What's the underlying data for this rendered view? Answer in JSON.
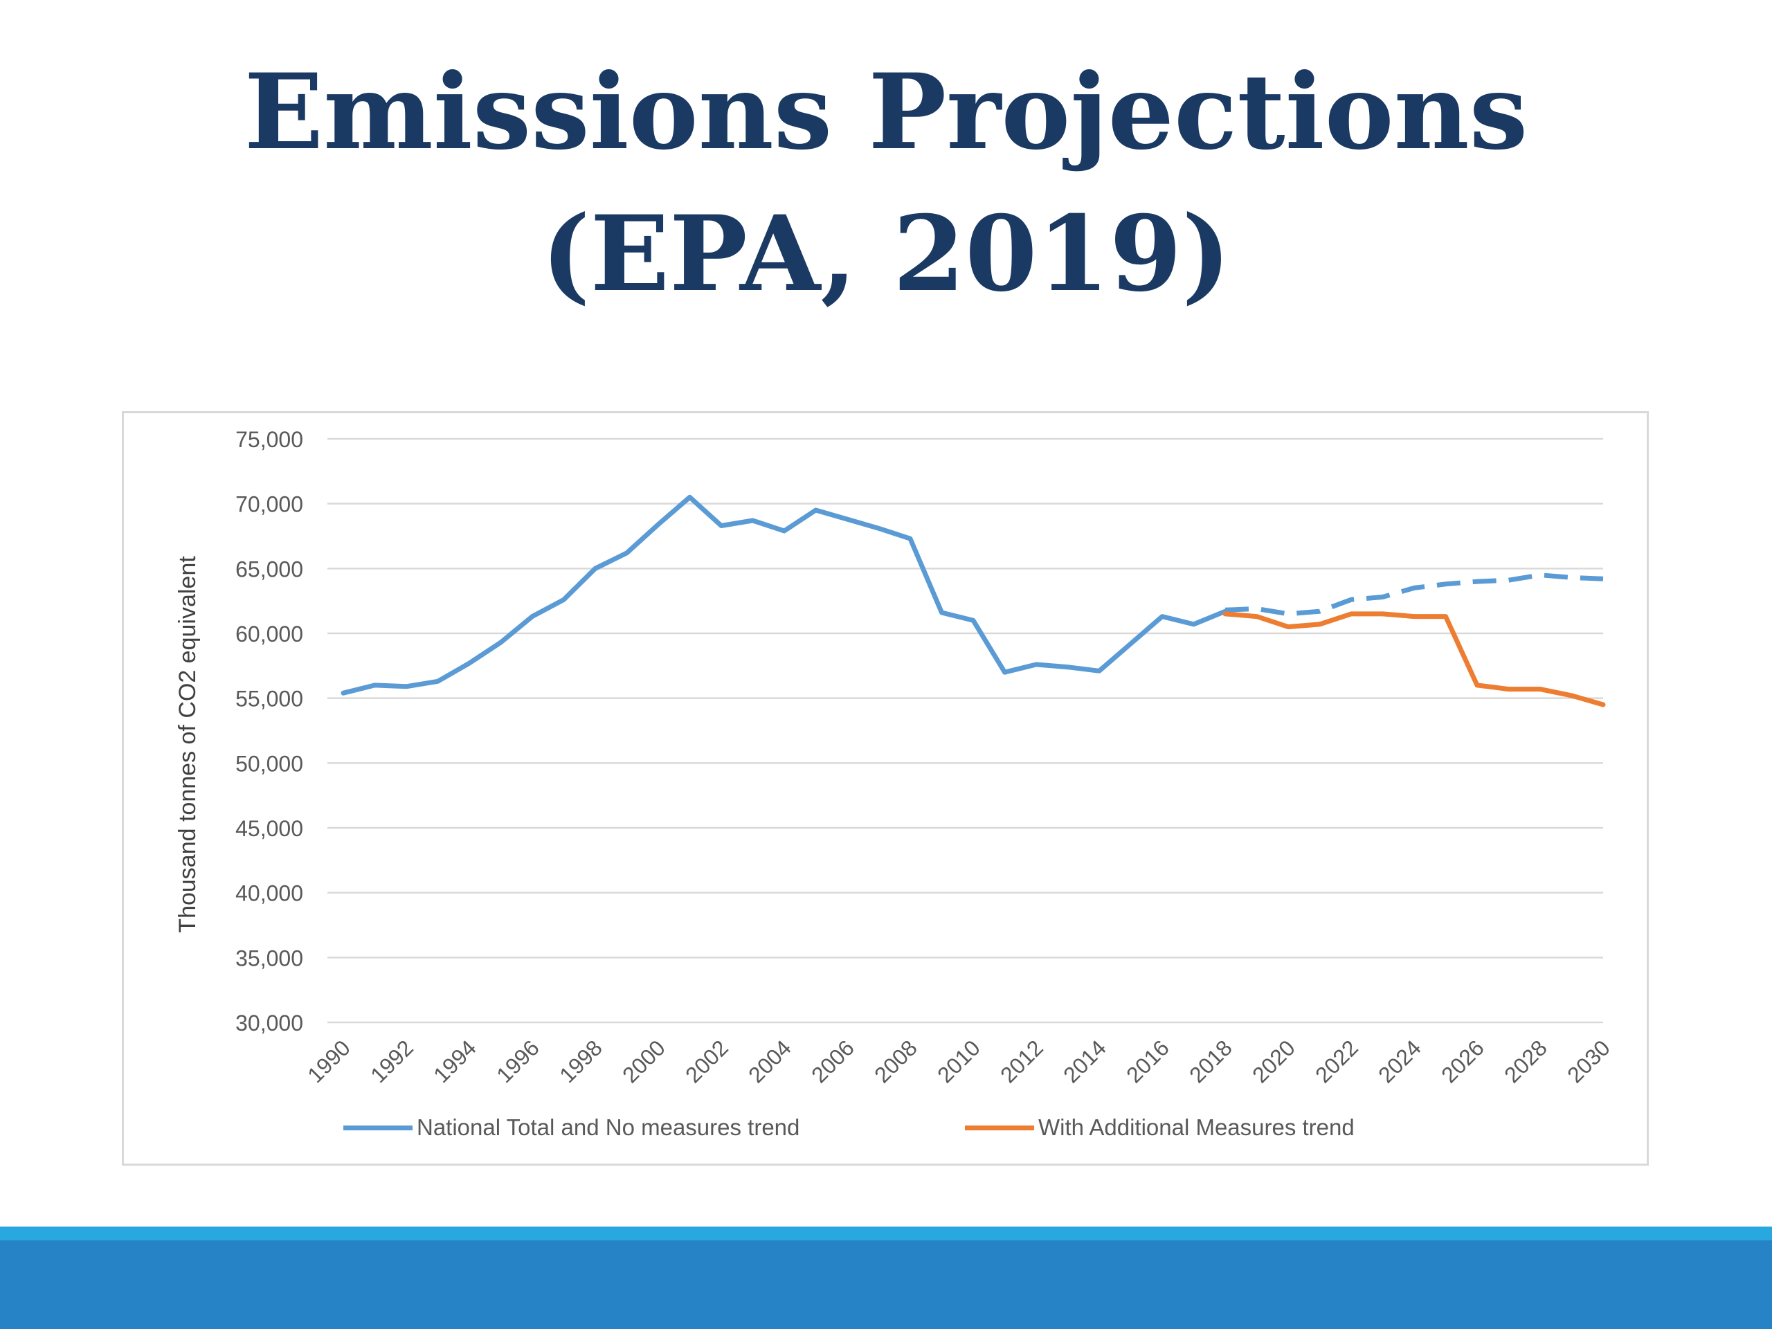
{
  "slide": {
    "title_line1": "Emissions Projections",
    "title_line2": "(EPA, 2019)"
  },
  "colors": {
    "title": "#1b3a63",
    "series_national": "#5b9bd5",
    "series_wam": "#ed7d31",
    "grid": "#d9d9d9",
    "tick_text": "#595959",
    "band_light": "#29a8e0",
    "band_dark": "#2583c6"
  },
  "chart_data": {
    "type": "line",
    "title": "",
    "xlabel": "",
    "ylabel": "Thousand tonnes of CO2 equivalent",
    "xlim": [
      1990,
      2030
    ],
    "ylim": [
      30000,
      75000
    ],
    "y_ticks": [
      30000,
      35000,
      40000,
      45000,
      50000,
      55000,
      60000,
      65000,
      70000,
      75000
    ],
    "y_tick_labels": [
      "30,000",
      "35,000",
      "40,000",
      "45,000",
      "50,000",
      "55,000",
      "60,000",
      "65,000",
      "70,000",
      "75,000"
    ],
    "x_ticks": [
      1990,
      1992,
      1994,
      1996,
      1998,
      2000,
      2002,
      2004,
      2006,
      2008,
      2010,
      2012,
      2014,
      2016,
      2018,
      2020,
      2022,
      2024,
      2026,
      2028,
      2030
    ],
    "x_tick_labels": [
      "1990",
      "1992",
      "1994",
      "1996",
      "1998",
      "2000",
      "2002",
      "2004",
      "2006",
      "2008",
      "2010",
      "2012",
      "2014",
      "2016",
      "2018",
      "2020",
      "2022",
      "2024",
      "2026",
      "2028",
      "2030"
    ],
    "grid": true,
    "legend_position": "bottom",
    "series": [
      {
        "name": "National Total and No measures trend",
        "color": "#5b9bd5",
        "segments": [
          {
            "style": "solid",
            "x": [
              1990,
              1991,
              1992,
              1993,
              1994,
              1995,
              1996,
              1997,
              1998,
              1999,
              2000,
              2001,
              2002,
              2003,
              2004,
              2005,
              2006,
              2007,
              2008,
              2009,
              2010,
              2011,
              2012,
              2013,
              2014,
              2015,
              2016,
              2017,
              2018
            ],
            "y": [
              55400,
              56000,
              55900,
              56300,
              57700,
              59300,
              61300,
              62600,
              65000,
              66200,
              68400,
              70500,
              68300,
              68700,
              67900,
              69500,
              68800,
              68100,
              67300,
              61600,
              61000,
              57000,
              57600,
              57400,
              57100,
              59200,
              61300,
              60700,
              61700
            ]
          },
          {
            "style": "dashed",
            "x": [
              2018,
              2019,
              2020,
              2021,
              2022,
              2023,
              2024,
              2025,
              2026,
              2027,
              2028,
              2029,
              2030
            ],
            "y": [
              61800,
              61900,
              61500,
              61700,
              62600,
              62800,
              63500,
              63800,
              64000,
              64100,
              64500,
              64300,
              64200
            ]
          }
        ]
      },
      {
        "name": "With Additional Measures trend",
        "color": "#ed7d31",
        "segments": [
          {
            "style": "solid",
            "x": [
              2018,
              2019,
              2020,
              2021,
              2022,
              2023,
              2024,
              2025,
              2026,
              2027,
              2028,
              2029,
              2030
            ],
            "y": [
              61500,
              61300,
              60500,
              60700,
              61500,
              61500,
              61300,
              61300,
              56000,
              55700,
              55700,
              55200,
              54500
            ]
          }
        ]
      }
    ]
  }
}
